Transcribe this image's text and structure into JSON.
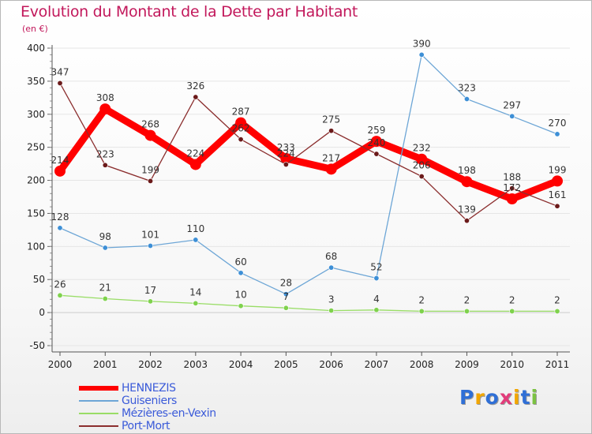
{
  "title": "Evolution du Montant de la Dette par Habitant",
  "subtitle": "(en €)",
  "logo": {
    "text": "Proxiti",
    "letters": [
      {
        "ch": "P",
        "color": "#2f6fd6"
      },
      {
        "ch": "r",
        "color": "#f2a600"
      },
      {
        "ch": "o",
        "color": "#2f6fd6"
      },
      {
        "ch": "x",
        "color": "#e23c7a"
      },
      {
        "ch": "i",
        "color": "#f2a600"
      },
      {
        "ch": "t",
        "color": "#2f6fd6"
      },
      {
        "ch": "i",
        "color": "#7cc242"
      }
    ]
  },
  "chart_data": {
    "type": "line",
    "title": "Evolution du Montant de la Dette par Habitant",
    "subtitle": "(en €)",
    "x": [
      "2000",
      "2001",
      "2002",
      "2003",
      "2004",
      "2005",
      "2006",
      "2007",
      "2008",
      "2009",
      "2010",
      "2011"
    ],
    "ylim": [
      -50,
      400
    ],
    "yticks": [
      -50,
      0,
      50,
      100,
      150,
      200,
      250,
      300,
      350,
      400
    ],
    "grid": true,
    "legend_position": "bottom-left",
    "series": [
      {
        "name": "HENNEZIS",
        "color": "#ff0000",
        "emphasized": true,
        "values": [
          214,
          308,
          268,
          224,
          287,
          233,
          217,
          259,
          232,
          198,
          172,
          199
        ],
        "labels": [
          "214",
          "308",
          "268",
          "224",
          "287",
          "233",
          "217",
          "259",
          "232",
          "198",
          "172",
          "199"
        ]
      },
      {
        "name": "Guiseniers",
        "color": "#6da6d6",
        "marker": "#3d8fd6",
        "emphasized": false,
        "values": [
          128,
          98,
          101,
          110,
          60,
          28,
          68,
          52,
          390,
          323,
          297,
          270
        ],
        "labels": [
          "128",
          "98",
          "101",
          "110",
          "60",
          "28",
          "68",
          "52",
          "390",
          "323",
          "297",
          "270"
        ]
      },
      {
        "name": "Mézières-en-Vexin",
        "color": "#99dd66",
        "marker": "#7fd24d",
        "emphasized": false,
        "values": [
          26,
          21,
          17,
          14,
          10,
          7,
          3,
          4,
          2,
          2,
          2,
          2
        ],
        "labels": [
          "26",
          "21",
          "17",
          "14",
          "10",
          "7",
          "3",
          "4",
          "2",
          "2",
          "2",
          "2"
        ]
      },
      {
        "name": "Port-Mort",
        "color": "#8b2e2e",
        "marker": "#6b1a1a",
        "emphasized": false,
        "values": [
          347,
          223,
          199,
          326,
          262,
          224,
          275,
          240,
          206,
          139,
          188,
          161
        ],
        "labels": [
          "347",
          "223",
          "199",
          "326",
          "262",
          "224",
          "275",
          "240",
          "206",
          "139",
          "188",
          "161"
        ]
      }
    ]
  }
}
